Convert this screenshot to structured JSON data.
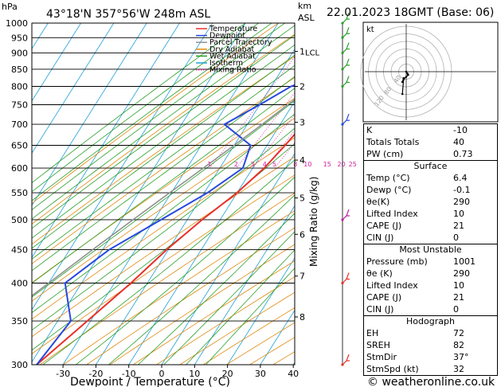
{
  "header": {
    "pressure_unit": "hPa",
    "location": "43°18'N 357°56'W 248m ASL",
    "km_unit": "km",
    "asl_unit": "ASL",
    "datetime": "22.01.2023 18GMT (Base: 06)"
  },
  "footer": {
    "xlabel": "Dewpoint / Temperature (°C)",
    "copyright": "© weatheronline.co.uk"
  },
  "right_axis_label": "Mixing Ratio (g/kg)",
  "chart_data": {
    "type": "line",
    "title": "43°18'N 357°56'W 248m ASL",
    "xlabel": "Dewpoint / Temperature (°C)",
    "ylabel": "hPa",
    "pressure_levels": [
      300,
      350,
      400,
      450,
      500,
      550,
      600,
      650,
      700,
      750,
      800,
      850,
      900,
      950,
      1000
    ],
    "temperature_ticks": [
      -30,
      -20,
      -10,
      0,
      10,
      20,
      30,
      40
    ],
    "xlim": [
      -40,
      40
    ],
    "ylim": [
      1000,
      300
    ],
    "height_ticks_km": [
      {
        "label": "8",
        "p": 355
      },
      {
        "label": "7",
        "p": 410
      },
      {
        "label": "6",
        "p": 475
      },
      {
        "label": "5",
        "p": 540
      },
      {
        "label": "4",
        "p": 617
      },
      {
        "label": "3",
        "p": 705
      },
      {
        "label": "2",
        "p": 800
      },
      {
        "label": "1",
        "p": 905
      }
    ],
    "lcl": {
      "label": "LCL",
      "p": 903
    },
    "mixing_ratio_labels": [
      "1",
      "2",
      "3",
      "4",
      "5",
      "8",
      "10",
      "15",
      "20",
      "25"
    ],
    "series": [
      {
        "name": "Temperature",
        "color": "#e8302a",
        "points": [
          [
            1000,
            6.4
          ],
          [
            950,
            4
          ],
          [
            900,
            3
          ],
          [
            850,
            1.5
          ],
          [
            800,
            0
          ],
          [
            750,
            -2
          ],
          [
            700,
            -3
          ],
          [
            650,
            -4.5
          ],
          [
            600,
            -6.5
          ],
          [
            550,
            -10
          ],
          [
            500,
            -15.5
          ],
          [
            450,
            -20.5
          ],
          [
            400,
            -25
          ],
          [
            350,
            -31
          ],
          [
            300,
            -38
          ]
        ]
      },
      {
        "name": "Dewpoint",
        "color": "#2848e0",
        "points": [
          [
            1000,
            -0.1
          ],
          [
            950,
            -1
          ],
          [
            900,
            -2
          ],
          [
            850,
            -3
          ],
          [
            800,
            -14
          ],
          [
            750,
            -20
          ],
          [
            700,
            -27
          ],
          [
            650,
            -15
          ],
          [
            600,
            -13
          ],
          [
            550,
            -19
          ],
          [
            500,
            -28
          ],
          [
            450,
            -38
          ],
          [
            400,
            -45
          ],
          [
            350,
            -36
          ],
          [
            300,
            -38
          ]
        ]
      },
      {
        "name": "Parcel Trajectory",
        "color": "#909090",
        "points": [
          [
            1000,
            6.4
          ],
          [
            950,
            2.5
          ],
          [
            903,
            -0.4
          ],
          [
            850,
            -4
          ],
          [
            800,
            -7.5
          ],
          [
            750,
            -11.5
          ],
          [
            700,
            -15.5
          ],
          [
            650,
            -20
          ],
          [
            600,
            -25
          ],
          [
            550,
            -30.5
          ],
          [
            500,
            -36.5
          ],
          [
            450,
            -43
          ],
          [
            400,
            -50
          ],
          [
            350,
            -58
          ],
          [
            300,
            -66
          ]
        ]
      }
    ],
    "legend": [
      {
        "label": "Temperature",
        "color": "#e8302a",
        "style": "solid"
      },
      {
        "label": "Dewpoint",
        "color": "#2848e0",
        "style": "solid"
      },
      {
        "label": "Parcel Trajectory",
        "color": "#909090",
        "style": "solid"
      },
      {
        "label": "Dry Adiabat",
        "color": "#e08a10",
        "style": "solid"
      },
      {
        "label": "Wet Adiabat",
        "color": "#2aa02a",
        "style": "solid"
      },
      {
        "label": "Isotherm",
        "color": "#20a0d8",
        "style": "solid"
      },
      {
        "label": "Mixing Ratio",
        "color": "#d020a0",
        "style": "dotted"
      }
    ],
    "hodograph": {
      "label": "kt",
      "rings": [
        "20",
        "40",
        "60",
        "80",
        "100",
        "120"
      ],
      "points": [
        [
          0,
          0
        ],
        [
          2,
          -3
        ],
        [
          3,
          -5
        ],
        [
          0,
          -8
        ],
        [
          -4,
          -12
        ],
        [
          -6,
          -16
        ],
        [
          -4,
          -10
        ],
        [
          -6,
          -35
        ]
      ]
    },
    "wind_barbs": [
      {
        "p": 300,
        "color": "#e8302a"
      },
      {
        "p": 400,
        "color": "#e8302a"
      },
      {
        "p": 500,
        "color": "#c020a0"
      },
      {
        "p": 700,
        "color": "#2848e0"
      },
      {
        "p": 800,
        "color": "#2aa02a"
      },
      {
        "p": 850,
        "color": "#2aa02a"
      },
      {
        "p": 900,
        "color": "#2aa02a"
      },
      {
        "p": 950,
        "color": "#2aa02a"
      },
      {
        "p": 1000,
        "color": "#2aa02a"
      }
    ]
  },
  "stats": {
    "basic": [
      {
        "label": "K",
        "value": "-10"
      },
      {
        "label": "Totals Totals",
        "value": "40"
      },
      {
        "label": "PW (cm)",
        "value": "0.73"
      }
    ],
    "surface": {
      "title": "Surface",
      "rows": [
        {
          "label": "Temp (°C)",
          "value": "6.4"
        },
        {
          "label": "Dewp (°C)",
          "value": "-0.1"
        },
        {
          "label": "θe(K)",
          "value": "290"
        },
        {
          "label": "Lifted Index",
          "value": "10"
        },
        {
          "label": "CAPE (J)",
          "value": "21"
        },
        {
          "label": "CIN (J)",
          "value": "0"
        }
      ]
    },
    "most_unstable": {
      "title": "Most Unstable",
      "rows": [
        {
          "label": "Pressure (mb)",
          "value": "1001"
        },
        {
          "label": "θe (K)",
          "value": "290"
        },
        {
          "label": "Lifted Index",
          "value": "10"
        },
        {
          "label": "CAPE (J)",
          "value": "21"
        },
        {
          "label": "CIN (J)",
          "value": "0"
        }
      ]
    },
    "hodograph": {
      "title": "Hodograph",
      "rows": [
        {
          "label": "EH",
          "value": "72"
        },
        {
          "label": "SREH",
          "value": "82"
        },
        {
          "label": "StmDir",
          "value": "37°"
        },
        {
          "label": "StmSpd (kt)",
          "value": "32"
        }
      ]
    }
  }
}
